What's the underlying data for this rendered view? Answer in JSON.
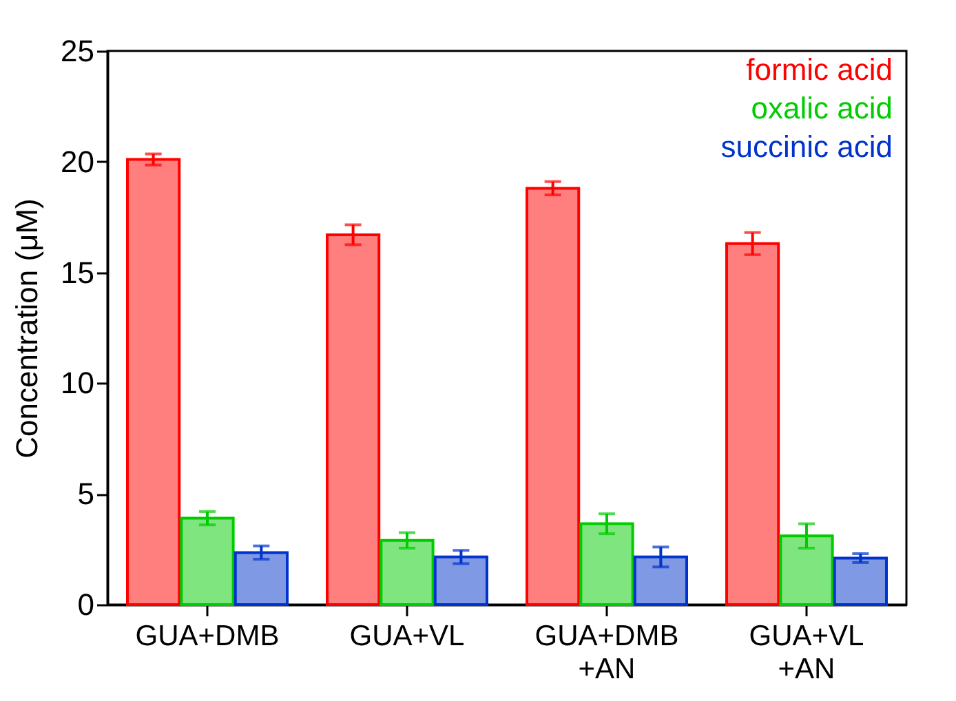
{
  "chart_data": {
    "type": "bar",
    "ylabel": "Concentration (μM)",
    "categories": [
      "GUA+DMB",
      "GUA+VL",
      "GUA+DMB\n+AN",
      "GUA+VL\n+AN"
    ],
    "series": [
      {
        "name": "formic acid",
        "color": "#ff0000",
        "values": [
          20.1,
          16.7,
          18.8,
          16.3
        ],
        "errors": [
          0.25,
          0.45,
          0.3,
          0.5
        ]
      },
      {
        "name": "oxalic acid",
        "color": "#00cc00",
        "values": [
          3.9,
          2.9,
          3.65,
          3.1
        ],
        "errors": [
          0.3,
          0.35,
          0.45,
          0.55
        ]
      },
      {
        "name": "succinic acid",
        "color": "#0033cc",
        "values": [
          2.35,
          2.15,
          2.15,
          2.1
        ],
        "errors": [
          0.3,
          0.3,
          0.45,
          0.2
        ]
      }
    ],
    "ylim": [
      0,
      25
    ],
    "yticks": [
      0,
      5,
      10,
      15,
      20,
      25
    ],
    "grid": false,
    "legend": "top right"
  }
}
